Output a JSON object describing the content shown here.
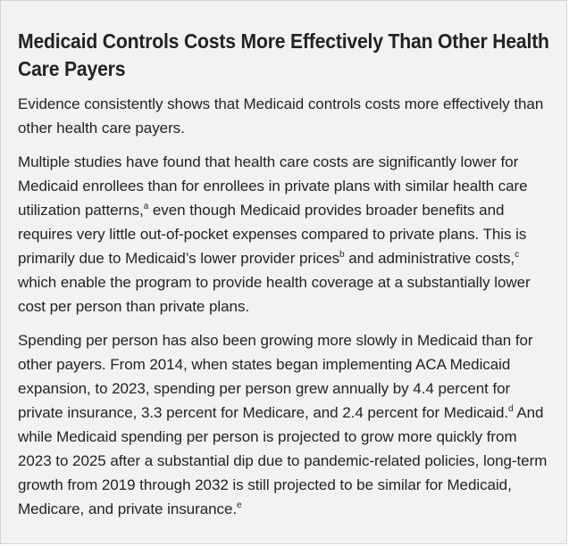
{
  "article": {
    "title": "Medicaid Controls Costs More Effectively Than Other Health Care Payers",
    "paragraphs": [
      [
        {
          "text": "Evidence consistently shows that Medicaid controls costs more effectively than other health care payers."
        }
      ],
      [
        {
          "text": "Multiple studies have found that health care costs are significantly lower for Medicaid enrollees than for enrollees in private plans with similar health care utilization patterns,"
        },
        {
          "text": "a",
          "sup": true
        },
        {
          "text": " even though Medicaid provides broader benefits and requires very little out-of-pocket expenses compared to private plans. This is primarily due to Medicaid’s lower provider prices"
        },
        {
          "text": "b",
          "sup": true
        },
        {
          "text": " and administrative costs,"
        },
        {
          "text": "c",
          "sup": true
        },
        {
          "text": " which enable the program to provide health coverage at a substantially lower cost per person than private plans."
        }
      ],
      [
        {
          "text": "Spending per person has also been growing more slowly in Medicaid than for other payers. From 2014, when states began implementing ACA Medicaid expansion, to 2023, spending per person grew annually by 4.4 percent for private insurance, 3.3 percent for Medicare, and 2.4 percent for Medicaid."
        },
        {
          "text": "d",
          "sup": true
        },
        {
          "text": " And while Medicaid spending per person is projected to grow more quickly from 2023 to 2025 after a substantial dip due to pandemic-related policies, long-term growth from 2019 through 2032 is still projected to be similar for Medicaid, Medicare, and private insurance."
        },
        {
          "text": "e",
          "sup": true
        }
      ]
    ]
  }
}
